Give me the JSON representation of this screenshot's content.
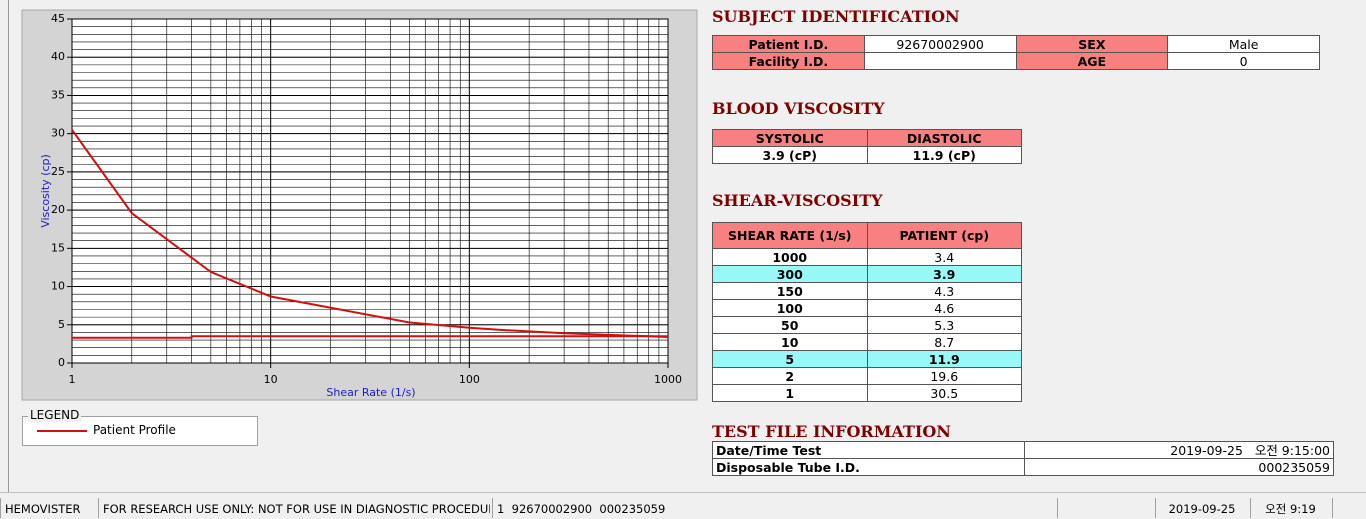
{
  "chart_data": {
    "type": "line",
    "y_label": "Viscosity (cp)",
    "x_label": "Shear Rate (1/s)",
    "x_scale": "log",
    "xlim": [
      1,
      1000
    ],
    "ylim": [
      0,
      45
    ],
    "xticks": [
      1,
      10,
      100,
      1000
    ],
    "yticks": [
      0,
      5,
      10,
      15,
      20,
      25,
      30,
      35,
      40,
      45
    ],
    "grid": true,
    "series": [
      {
        "name": "Patient Profile",
        "color": "#d01010",
        "x": [
          1,
          2,
          5,
          10,
          50,
          100,
          150,
          300,
          1000
        ],
        "values": [
          30.5,
          19.6,
          11.9,
          8.7,
          5.3,
          4.6,
          4.3,
          3.9,
          3.4
        ]
      },
      {
        "color": "#d01010",
        "x": [
          1,
          4,
          4,
          1000
        ],
        "values": [
          3.3,
          3.3,
          3.5,
          3.5
        ]
      }
    ]
  },
  "legend": {
    "title": "LEGEND"
  },
  "subject": {
    "title": "SUBJECT IDENTIFICATION",
    "rows": [
      [
        "Patient I.D.",
        "92670002900",
        "SEX",
        "Male"
      ],
      [
        "Facility I.D.",
        null,
        "AGE",
        "0"
      ]
    ]
  },
  "blood_viscosity": {
    "title": "BLOOD VISCOSITY",
    "header": [
      "SYSTOLIC",
      "DIASTOLIC"
    ],
    "values": [
      "3.9 (cP)",
      "11.9 (cP)"
    ]
  },
  "shear_viscosity": {
    "title": "SHEAR-VISCOSITY",
    "header": [
      "SHEAR RATE (1/s)",
      "PATIENT (cp)"
    ],
    "rows": [
      [
        "1000",
        "3.4"
      ],
      [
        "300",
        "3.9"
      ],
      [
        "150",
        "4.3"
      ],
      [
        "100",
        "4.6"
      ],
      [
        "50",
        "5.3"
      ],
      [
        "10",
        "8.7"
      ],
      [
        "5",
        "11.9"
      ],
      [
        "2",
        "19.6"
      ],
      [
        "1",
        "30.5"
      ]
    ],
    "highlighted": [
      1,
      6
    ]
  },
  "test_file": {
    "title": "TEST FILE INFORMATION",
    "rows": [
      [
        "Date/Time Test",
        "2019-09-25   오전 9:15:00"
      ],
      [
        "Disposable Tube I.D.",
        "000235059"
      ]
    ]
  },
  "status_bar": [
    "HEMOVISTER",
    "FOR RESEARCH USE ONLY: NOT FOR USE IN DIAGNOSTIC PROCEDURES",
    "1  92670002900  000235059",
    "2019-09-25",
    "오전 9:19"
  ]
}
